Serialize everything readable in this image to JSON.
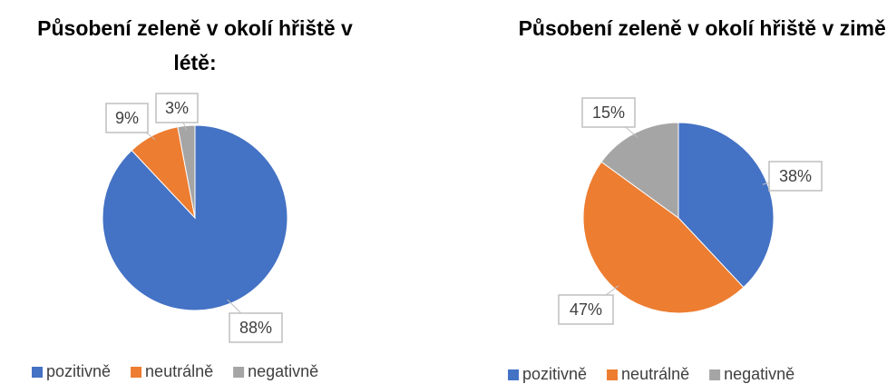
{
  "chart_data": [
    {
      "type": "pie",
      "title": "Působení zeleně v okolí hřiště v létě:",
      "categories": [
        "pozitivně",
        "neutrálně",
        "negativně"
      ],
      "values": [
        88,
        9,
        3
      ],
      "value_labels": [
        "88%",
        "9%",
        "3%"
      ],
      "colors": [
        "#4472c4",
        "#ed7d31",
        "#a5a5a5"
      ]
    },
    {
      "type": "pie",
      "title": "Působení zeleně v okolí hřiště v zimě:",
      "categories": [
        "pozitivně",
        "neutrálně",
        "negativně"
      ],
      "values": [
        38,
        47,
        15
      ],
      "value_labels": [
        "38%",
        "47%",
        "15%"
      ],
      "colors": [
        "#4472c4",
        "#ed7d31",
        "#a5a5a5"
      ]
    }
  ]
}
